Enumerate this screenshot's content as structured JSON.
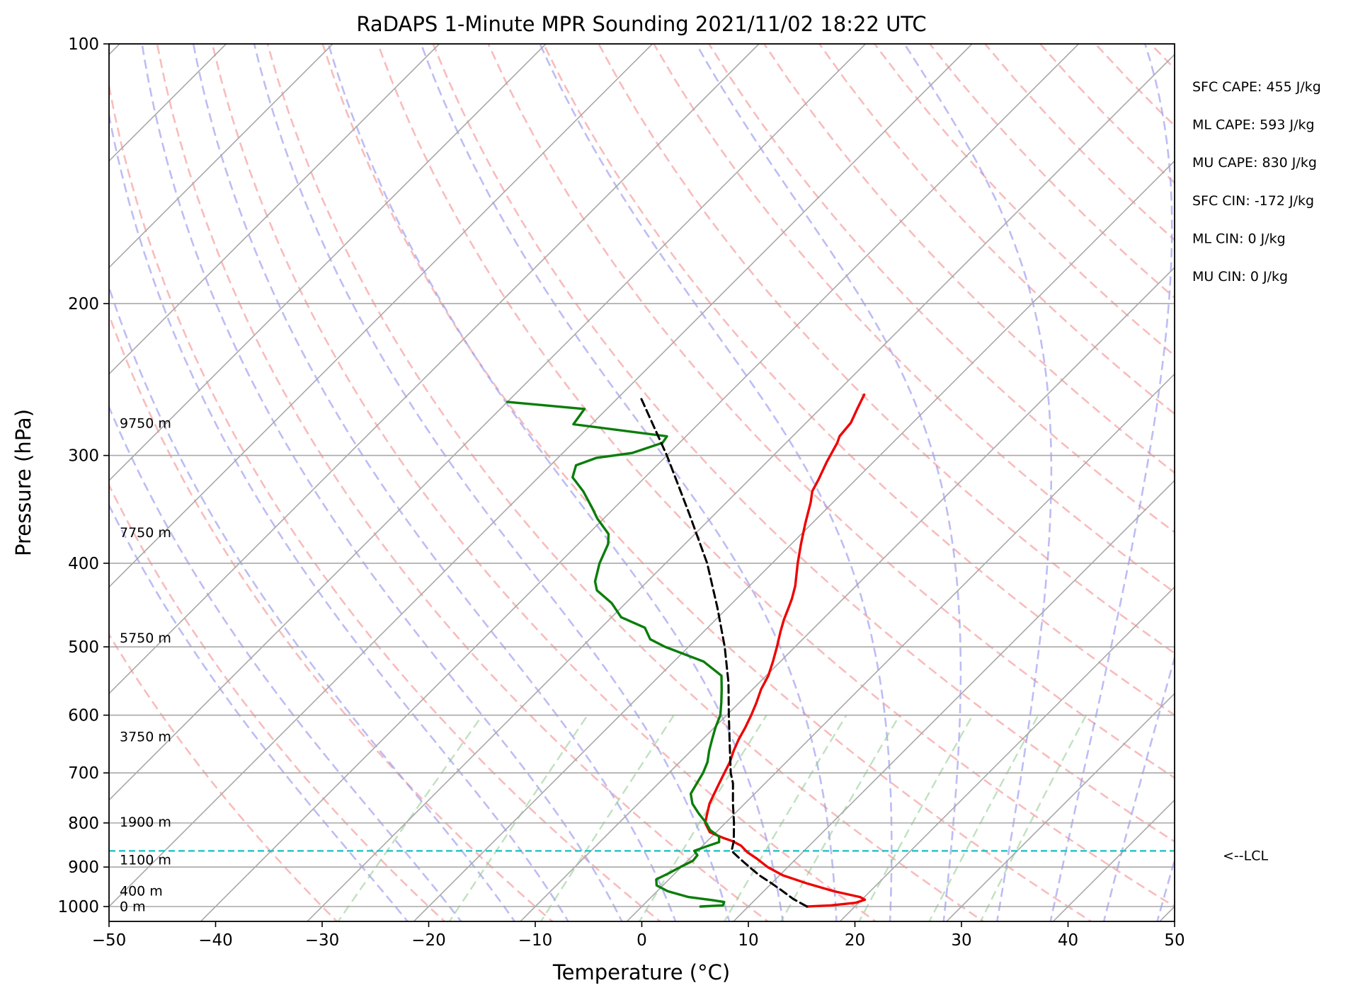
{
  "chart_data": {
    "type": "line",
    "subtype": "skew-t log-p",
    "title": "RaDAPS 1-Minute MPR Sounding 2021/11/02 18:22 UTC",
    "xlabel": "Temperature (°C)",
    "ylabel": "Pressure (hPa)",
    "xlim": [
      -50,
      50
    ],
    "ylim": [
      1050,
      100
    ],
    "y_scale": "log",
    "x_ticks": [
      -50,
      -40,
      -30,
      -20,
      -10,
      0,
      10,
      20,
      30,
      40,
      50
    ],
    "x_tick_labels": [
      "−50",
      "−40",
      "−30",
      "−20",
      "−10",
      "0",
      "10",
      "20",
      "30",
      "40",
      "50"
    ],
    "y_ticks": [
      1000,
      900,
      800,
      700,
      600,
      500,
      400,
      300,
      200,
      100
    ],
    "y_tick_labels": [
      "1000",
      "900",
      "800",
      "700",
      "600",
      "500",
      "400",
      "300",
      "200",
      "100"
    ],
    "grid": true,
    "colors": {
      "temperature": "#ee0000",
      "dewpoint": "#0a7d0a",
      "parcel": "#000000",
      "lcl_line": "#17bfbf",
      "isotherm": "#a8a8a8",
      "dry_adiabat": "#f5a0a0",
      "moist_adiabat": "#9a9aee",
      "mixing_ratio": "#8cc98c"
    },
    "series": [
      {
        "key": "temperature",
        "points": [
          [
            1000,
            15.5
          ],
          [
            997,
            17.6
          ],
          [
            990,
            19.7
          ],
          [
            982,
            20.3
          ],
          [
            975,
            19.6
          ],
          [
            960,
            16.6
          ],
          [
            940,
            13.3
          ],
          [
            920,
            10.3
          ],
          [
            900,
            8.1
          ],
          [
            880,
            6.3
          ],
          [
            865,
            4.8
          ],
          [
            850,
            3.6
          ],
          [
            840,
            2.4
          ],
          [
            832,
            1.1
          ],
          [
            820,
            -0.6
          ],
          [
            800,
            -1.9
          ],
          [
            780,
            -2.6
          ],
          [
            760,
            -3.3
          ],
          [
            740,
            -3.8
          ],
          [
            720,
            -4.3
          ],
          [
            700,
            -4.8
          ],
          [
            680,
            -5.3
          ],
          [
            660,
            -6.0
          ],
          [
            640,
            -6.6
          ],
          [
            620,
            -7.1
          ],
          [
            600,
            -7.7
          ],
          [
            580,
            -8.4
          ],
          [
            560,
            -9.2
          ],
          [
            540,
            -9.8
          ],
          [
            520,
            -10.7
          ],
          [
            500,
            -11.7
          ],
          [
            480,
            -12.8
          ],
          [
            465,
            -13.6
          ],
          [
            450,
            -14.3
          ],
          [
            440,
            -14.8
          ],
          [
            425,
            -15.7
          ],
          [
            400,
            -17.6
          ],
          [
            380,
            -19.1
          ],
          [
            360,
            -20.6
          ],
          [
            340,
            -22.1
          ],
          [
            330,
            -23.0
          ],
          [
            320,
            -23.5
          ],
          [
            305,
            -24.4
          ],
          [
            290,
            -25.2
          ],
          [
            285,
            -25.6
          ],
          [
            275,
            -25.8
          ],
          [
            265,
            -26.5
          ],
          [
            255,
            -27.2
          ]
        ]
      },
      {
        "key": "dewpoint",
        "points": [
          [
            1000,
            5.5
          ],
          [
            997,
            7.5
          ],
          [
            988,
            7.3
          ],
          [
            983,
            6.0
          ],
          [
            975,
            3.5
          ],
          [
            960,
            1.0
          ],
          [
            945,
            -0.6
          ],
          [
            930,
            -1.2
          ],
          [
            915,
            -0.6
          ],
          [
            900,
            -0.1
          ],
          [
            885,
            0.5
          ],
          [
            872,
            0.4
          ],
          [
            862,
            -0.3
          ],
          [
            852,
            0.4
          ],
          [
            842,
            1.2
          ],
          [
            830,
            0.7
          ],
          [
            815,
            -0.8
          ],
          [
            800,
            -1.8
          ],
          [
            780,
            -3.4
          ],
          [
            760,
            -4.9
          ],
          [
            740,
            -6.0
          ],
          [
            720,
            -6.4
          ],
          [
            700,
            -6.8
          ],
          [
            680,
            -7.4
          ],
          [
            660,
            -8.3
          ],
          [
            640,
            -9.1
          ],
          [
            620,
            -9.9
          ],
          [
            600,
            -10.6
          ],
          [
            580,
            -11.7
          ],
          [
            560,
            -12.9
          ],
          [
            540,
            -14.2
          ],
          [
            520,
            -17.2
          ],
          [
            500,
            -22.2
          ],
          [
            490,
            -24.3
          ],
          [
            475,
            -25.9
          ],
          [
            462,
            -29.1
          ],
          [
            445,
            -31.3
          ],
          [
            430,
            -33.9
          ],
          [
            420,
            -34.9
          ],
          [
            400,
            -36.2
          ],
          [
            380,
            -37.2
          ],
          [
            370,
            -38.1
          ],
          [
            355,
            -40.6
          ],
          [
            345,
            -42.1
          ],
          [
            330,
            -44.5
          ],
          [
            318,
            -46.8
          ],
          [
            308,
            -47.6
          ],
          [
            302,
            -46.4
          ],
          [
            298,
            -43.5
          ],
          [
            290,
            -41.6
          ],
          [
            285,
            -41.8
          ],
          [
            276,
            -51.7
          ],
          [
            265,
            -52.1
          ],
          [
            260,
            -60.0
          ]
        ]
      },
      {
        "key": "parcel",
        "points": [
          [
            1000,
            15.5
          ],
          [
            980,
            13.5
          ],
          [
            960,
            11.8
          ],
          [
            940,
            10.0
          ],
          [
            920,
            8.1
          ],
          [
            900,
            6.4
          ],
          [
            880,
            4.7
          ],
          [
            862,
            3.2
          ],
          [
            840,
            2.5
          ],
          [
            800,
            0.8
          ],
          [
            760,
            -1.1
          ],
          [
            720,
            -3.0
          ],
          [
            700,
            -4.2
          ],
          [
            650,
            -6.9
          ],
          [
            600,
            -9.8
          ],
          [
            550,
            -12.9
          ],
          [
            500,
            -16.6
          ],
          [
            450,
            -21.0
          ],
          [
            400,
            -26.1
          ],
          [
            350,
            -32.5
          ],
          [
            300,
            -40.0
          ],
          [
            260,
            -47.3
          ],
          [
            258,
            -47.7
          ]
        ]
      }
    ],
    "lcl_pressure": 862,
    "lcl_label": "<--LCL",
    "height_labels": [
      {
        "text": "9750 m",
        "p": 275
      },
      {
        "text": "7750 m",
        "p": 368
      },
      {
        "text": "5750 m",
        "p": 488
      },
      {
        "text": "3750 m",
        "p": 635
      },
      {
        "text": "1900 m",
        "p": 797
      },
      {
        "text": "1100 m",
        "p": 882
      },
      {
        "text": "400 m",
        "p": 958
      },
      {
        "text": "0 m",
        "p": 999
      }
    ],
    "annotations": [
      "SFC CAPE: 455 J/kg",
      "ML CAPE: 593 J/kg",
      "MU CAPE: 830 J/kg",
      "SFC CIN: -172 J/kg",
      "ML CIN: 0 J/kg",
      "MU CIN: 0 J/kg"
    ]
  }
}
